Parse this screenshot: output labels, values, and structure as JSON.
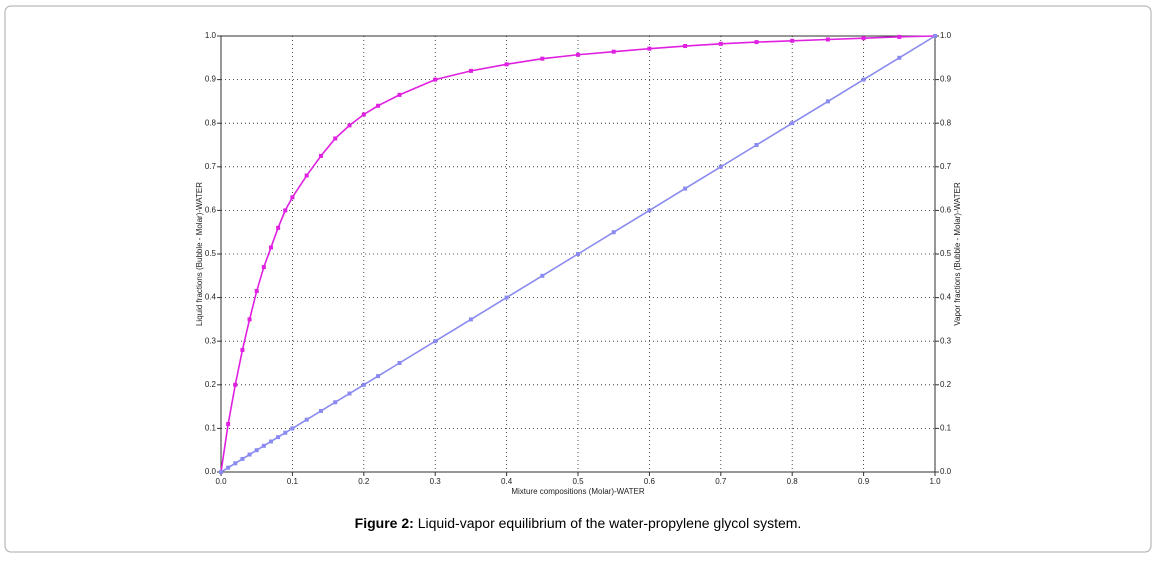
{
  "chart_data": {
    "type": "line",
    "x_label": "Mixture compositions (Molar)-WATER",
    "y_label": "Liquid fractions (Bubble - Molar)-WATER",
    "y2_label": "Vapor fractions (Bubble - Molar)-WATER",
    "caption_label": "Figure 2:",
    "caption_text": "Liquid-vapor equilibrium of the water-propylene glycol system.",
    "x": [
      0,
      0.01,
      0.02,
      0.03,
      0.04,
      0.05,
      0.06,
      0.07,
      0.08,
      0.09,
      0.1,
      0.12,
      0.14,
      0.16,
      0.18,
      0.2,
      0.22,
      0.25,
      0.3,
      0.35,
      0.4,
      0.45,
      0.5,
      0.55,
      0.6,
      0.65,
      0.7,
      0.75,
      0.8,
      0.85,
      0.9,
      0.95,
      1
    ],
    "series": [
      {
        "color": "#e020e0",
        "values": [
          0,
          0.11,
          0.2,
          0.28,
          0.35,
          0.415,
          0.47,
          0.515,
          0.56,
          0.6,
          0.63,
          0.68,
          0.725,
          0.765,
          0.795,
          0.82,
          0.84,
          0.865,
          0.9,
          0.92,
          0.935,
          0.948,
          0.957,
          0.964,
          0.971,
          0.977,
          0.982,
          0.986,
          0.989,
          0.992,
          0.995,
          0.998,
          1
        ]
      },
      {
        "color": "#8a8af0",
        "values": [
          0,
          0.01,
          0.02,
          0.03,
          0.04,
          0.05,
          0.06,
          0.07,
          0.08,
          0.09,
          0.1,
          0.12,
          0.14,
          0.16,
          0.18,
          0.2,
          0.22,
          0.25,
          0.3,
          0.35,
          0.4,
          0.45,
          0.5,
          0.55,
          0.6,
          0.65,
          0.7,
          0.75,
          0.8,
          0.85,
          0.9,
          0.95,
          1
        ]
      }
    ],
    "xlim": [
      0,
      1
    ],
    "ylim": [
      0,
      1
    ],
    "y2lim": [
      0,
      1
    ],
    "xticks": [
      {
        "value": 0,
        "label": "0.0"
      },
      0.1,
      0.2,
      0.3,
      0.4,
      0.5,
      0.6,
      0.7,
      0.8,
      0.9,
      {
        "value": 1,
        "label": "1.0"
      }
    ],
    "yticks": [
      {
        "value": 0,
        "label": "0.0"
      },
      0.1,
      0.2,
      0.3,
      0.4,
      0.5,
      0.6,
      0.7,
      0.8,
      0.9,
      {
        "value": 1,
        "label": "1.0"
      }
    ],
    "y2ticks": [
      {
        "value": 0,
        "label": "0.0"
      },
      0.1,
      0.2,
      0.3,
      0.4,
      0.5,
      0.6,
      0.7,
      0.8,
      0.9,
      {
        "value": 1,
        "label": "1.0"
      }
    ],
    "grid": true
  }
}
